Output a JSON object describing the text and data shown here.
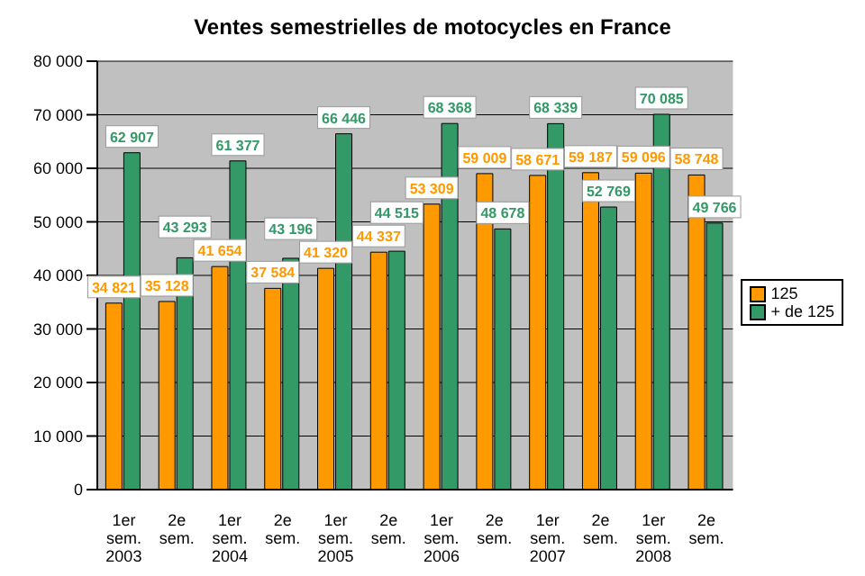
{
  "chart_data": {
    "type": "bar",
    "title": "Ventes semestrielles de motocycles en France",
    "categories": [
      "1er\nsem.\n2003",
      "2e\nsem.",
      "1er\nsem.\n2004",
      "2e\nsem.",
      "1er\nsem.\n2005",
      "2e\nsem.",
      "1er\nsem.\n2006",
      "2e\nsem.",
      "1er\nsem.\n2007",
      "2e\nsem.",
      "1er\nsem.\n2008",
      "2e\nsem."
    ],
    "series": [
      {
        "name": "125",
        "color": "#ff9900",
        "values": [
          34821,
          35128,
          41654,
          37584,
          41320,
          44337,
          53309,
          59009,
          58671,
          59187,
          59096,
          58748
        ],
        "value_labels": [
          "34 821",
          "35 128",
          "41 654",
          "37 584",
          "41 320",
          "44 337",
          "53 309",
          "59 009",
          "58 671",
          "59 187",
          "59 096",
          "58 748"
        ]
      },
      {
        "name": "+ de 125",
        "color": "#339966",
        "values": [
          62907,
          43293,
          61377,
          43196,
          66446,
          44515,
          68368,
          48678,
          68339,
          52769,
          70085,
          49766
        ],
        "value_labels": [
          "62 907",
          "43 293",
          "61 377",
          "43 196",
          "66 446",
          "44 515",
          "68 368",
          "48 678",
          "68 339",
          "52 769",
          "70 085",
          "49 766"
        ]
      }
    ],
    "ylim": [
      0,
      80000
    ],
    "yticks": [
      {
        "value": 0,
        "label": "0"
      },
      {
        "value": 10000,
        "label": "10 000"
      },
      {
        "value": 20000,
        "label": "20 000"
      },
      {
        "value": 30000,
        "label": "30 000"
      },
      {
        "value": 40000,
        "label": "40 000"
      },
      {
        "value": 50000,
        "label": "50 000"
      },
      {
        "value": 60000,
        "label": "60 000"
      },
      {
        "value": 70000,
        "label": "70 000"
      },
      {
        "value": 80000,
        "label": "80 000"
      }
    ],
    "grid": "y",
    "legend": "right"
  }
}
